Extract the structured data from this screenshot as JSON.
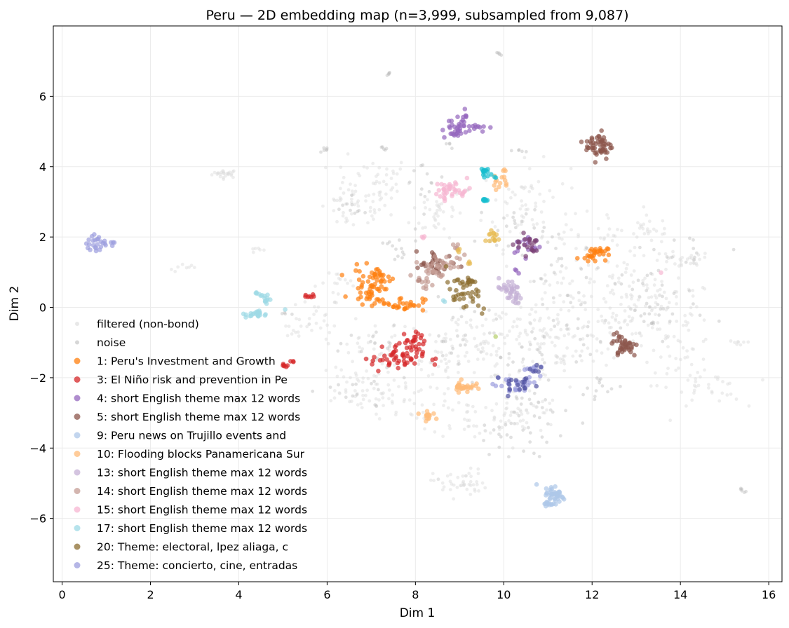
{
  "chart_data": {
    "type": "scatter",
    "title": "Peru — 2D embedding map (n=3,999, subsampled from 9,087)",
    "xlabel": "Dim 1",
    "ylabel": "Dim 2",
    "xlim": [
      -0.2,
      16.3
    ],
    "ylim": [
      -7.8,
      8.0
    ],
    "xticks": [
      0,
      2,
      4,
      6,
      8,
      10,
      12,
      14,
      16
    ],
    "yticks": [
      -6,
      -4,
      -2,
      0,
      2,
      4,
      6
    ],
    "xtick_labels": [
      "0",
      "2",
      "4",
      "6",
      "8",
      "10",
      "12",
      "14",
      "16"
    ],
    "ytick_labels": [
      "−6",
      "−4",
      "−2",
      "0",
      "2",
      "4",
      "6"
    ],
    "grid": true,
    "legend_position": "lower-left",
    "series": [
      {
        "name": "filtered (non-bond)",
        "color": "#d9d9d9",
        "background": true,
        "clusters": [
          [
            3.7,
            3.8,
            0.15,
            0.06,
            25
          ],
          [
            2.8,
            1.1,
            0.2,
            0.06,
            8
          ],
          [
            5.8,
            -0.3,
            0.25,
            0.3,
            25
          ],
          [
            6.6,
            2.8,
            0.4,
            0.3,
            40
          ],
          [
            7.0,
            3.6,
            0.45,
            0.35,
            45
          ],
          [
            8.5,
            2.7,
            0.3,
            0.35,
            35
          ],
          [
            10.5,
            2.9,
            0.5,
            0.6,
            60
          ],
          [
            11.8,
            1.0,
            0.6,
            0.7,
            60
          ],
          [
            12.8,
            0.3,
            0.6,
            0.6,
            60
          ],
          [
            13.3,
            2.2,
            0.3,
            0.2,
            25
          ],
          [
            14.0,
            1.3,
            0.35,
            0.15,
            30
          ],
          [
            13.8,
            0.1,
            0.5,
            0.3,
            30
          ],
          [
            12.9,
            -0.5,
            0.5,
            0.4,
            45
          ],
          [
            14.0,
            -1.2,
            0.4,
            0.5,
            40
          ],
          [
            14.6,
            -2.3,
            0.4,
            0.3,
            30
          ],
          [
            15.3,
            -1.0,
            0.1,
            0.03,
            8
          ],
          [
            11.0,
            -1.0,
            0.7,
            0.7,
            90
          ],
          [
            10.3,
            -3.0,
            0.5,
            0.35,
            50
          ],
          [
            9.2,
            -3.1,
            0.4,
            0.3,
            30
          ],
          [
            6.6,
            -2.4,
            0.5,
            0.4,
            45
          ],
          [
            7.6,
            -2.6,
            0.4,
            0.3,
            30
          ],
          [
            9.0,
            -5.0,
            0.3,
            0.2,
            45
          ],
          [
            9.7,
            -1.0,
            0.7,
            0.6,
            80
          ],
          [
            7.0,
            -1.2,
            0.5,
            0.4,
            40
          ],
          [
            8.6,
            -1.5,
            0.4,
            0.4,
            35
          ],
          [
            4.4,
            1.6,
            0.1,
            0.08,
            6
          ],
          [
            5.1,
            -0.7,
            0.15,
            0.1,
            8
          ],
          [
            12.4,
            2.0,
            0.15,
            0.15,
            12
          ],
          [
            6.4,
            0.7,
            0.3,
            0.2,
            15
          ]
        ]
      },
      {
        "name": "noise",
        "color": "#bdbdbd",
        "background": true,
        "clusters": [
          [
            7.4,
            6.65,
            0.03,
            0.02,
            5
          ],
          [
            9.9,
            7.2,
            0.04,
            0.02,
            5
          ],
          [
            7.3,
            4.5,
            0.05,
            0.04,
            5
          ],
          [
            6.0,
            4.5,
            0.05,
            0.05,
            6
          ],
          [
            10.4,
            4.45,
            0.06,
            0.03,
            5
          ],
          [
            8.8,
            4.6,
            0.05,
            0.04,
            4
          ],
          [
            10.2,
            2.4,
            0.4,
            0.3,
            20
          ],
          [
            11.3,
            0.9,
            0.5,
            0.5,
            25
          ],
          [
            13.2,
            0.5,
            0.5,
            0.5,
            20
          ],
          [
            13.5,
            -0.3,
            0.5,
            0.3,
            20
          ],
          [
            11.0,
            -1.2,
            0.6,
            0.6,
            35
          ],
          [
            10.7,
            -3.0,
            0.4,
            0.4,
            20
          ],
          [
            9.9,
            -3.5,
            0.3,
            0.2,
            12
          ],
          [
            15.4,
            -5.2,
            0.05,
            0.05,
            6
          ],
          [
            9.1,
            -0.9,
            0.5,
            0.5,
            25
          ],
          [
            7.3,
            -1.0,
            0.4,
            0.4,
            15
          ],
          [
            6.7,
            -2.4,
            0.4,
            0.3,
            15
          ],
          [
            7.5,
            1.5,
            0.3,
            0.4,
            15
          ],
          [
            8.3,
            3.5,
            0.3,
            0.4,
            15
          ],
          [
            6.5,
            2.8,
            0.2,
            0.15,
            10
          ],
          [
            12.2,
            -2.4,
            0.3,
            0.3,
            12
          ],
          [
            14.3,
            1.7,
            0.4,
            0.3,
            12
          ],
          [
            5.0,
            -0.2,
            0.1,
            0.1,
            4
          ],
          [
            10.4,
            -4.0,
            0.3,
            0.2,
            10
          ]
        ]
      },
      {
        "name": "1: Peru's Investment and Growth",
        "color": "#ff7f0e",
        "clusters": [
          [
            7.0,
            0.6,
            0.22,
            0.25,
            55
          ],
          [
            7.7,
            0.1,
            0.25,
            0.1,
            30
          ],
          [
            7.2,
            0.9,
            0.15,
            0.12,
            12
          ],
          [
            12.05,
            1.55,
            0.15,
            0.1,
            25
          ],
          [
            11.95,
            1.4,
            0.05,
            0.05,
            5
          ]
        ]
      },
      {
        "name": "3: El Niño risk and prevention in Pe",
        "color": "#d62728",
        "clusters": [
          [
            7.6,
            -1.4,
            0.3,
            0.22,
            60
          ],
          [
            8.0,
            -1.0,
            0.1,
            0.15,
            15
          ],
          [
            5.6,
            0.35,
            0.08,
            0.05,
            7
          ],
          [
            5.0,
            -1.65,
            0.05,
            0.03,
            6
          ],
          [
            5.2,
            -1.55,
            0.05,
            0.04,
            3
          ]
        ]
      },
      {
        "name": "4: short English theme max 12 words",
        "color": "#9467bd",
        "clusters": [
          [
            8.9,
            5.0,
            0.15,
            0.12,
            20
          ],
          [
            9.25,
            5.15,
            0.2,
            0.08,
            20
          ],
          [
            9.05,
            5.45,
            0.07,
            0.1,
            8
          ],
          [
            10.55,
            1.75,
            0.15,
            0.15,
            20
          ],
          [
            10.3,
            1.05,
            0.05,
            0.05,
            3
          ]
        ]
      },
      {
        "name": "5: short English theme max 12 words",
        "color": "#8c564b",
        "clusters": [
          [
            12.15,
            4.6,
            0.15,
            0.2,
            55
          ],
          [
            12.75,
            -1.1,
            0.15,
            0.15,
            35
          ],
          [
            12.55,
            -0.75,
            0.05,
            0.08,
            5
          ],
          [
            8.5,
            1.2,
            0.25,
            0.2,
            35
          ]
        ]
      },
      {
        "name": "9: Peru news on Trujillo events and",
        "color": "#aec7e8",
        "clusters": [
          [
            11.15,
            -5.35,
            0.12,
            0.15,
            45
          ],
          [
            11.0,
            -5.6,
            0.05,
            0.05,
            6
          ]
        ]
      },
      {
        "name": "10: Flooding blocks Panamericana Sur",
        "color": "#ffbb78",
        "clusters": [
          [
            9.1,
            -2.25,
            0.12,
            0.08,
            30
          ],
          [
            8.3,
            -3.05,
            0.1,
            0.07,
            15
          ],
          [
            9.9,
            3.55,
            0.1,
            0.1,
            12
          ],
          [
            10.0,
            3.9,
            0.03,
            0.03,
            3
          ]
        ]
      },
      {
        "name": "13: short English theme max 12 words",
        "color": "#c5b0d5",
        "clusters": [
          [
            10.1,
            0.5,
            0.15,
            0.15,
            30
          ],
          [
            10.3,
            0.25,
            0.1,
            0.08,
            8
          ]
        ]
      },
      {
        "name": "14: short English theme max 12 words",
        "color": "#c49c94",
        "clusters": [
          [
            8.45,
            1.15,
            0.2,
            0.18,
            40
          ],
          [
            8.9,
            1.6,
            0.1,
            0.1,
            8
          ],
          [
            8.3,
            0.6,
            0.1,
            0.1,
            6
          ]
        ]
      },
      {
        "name": "15: short English theme max 12 words",
        "color": "#f7b6d2",
        "clusters": [
          [
            8.85,
            3.35,
            0.2,
            0.12,
            35
          ],
          [
            8.6,
            3.1,
            0.05,
            0.05,
            4
          ],
          [
            13.55,
            1.0,
            0.02,
            0.02,
            1
          ],
          [
            8.2,
            2.0,
            0.05,
            0.05,
            3
          ]
        ]
      },
      {
        "name": "17: short English theme max 12 words",
        "color": "#9edae5",
        "clusters": [
          [
            4.4,
            -0.2,
            0.12,
            0.05,
            22
          ],
          [
            4.6,
            0.25,
            0.06,
            0.08,
            12
          ],
          [
            4.4,
            0.4,
            0.03,
            0.04,
            4
          ],
          [
            5.0,
            -0.05,
            0.02,
            0.02,
            1
          ],
          [
            8.65,
            0.15,
            0.03,
            0.03,
            2
          ]
        ]
      },
      {
        "name": "20: Theme: electoral, lpez aliaga, c",
        "color": "#8c6d31",
        "clusters": [
          [
            9.05,
            0.45,
            0.18,
            0.2,
            35
          ],
          [
            9.2,
            0.75,
            0.08,
            0.05,
            8
          ],
          [
            9.5,
            -0.05,
            0.05,
            0.05,
            3
          ]
        ]
      },
      {
        "name": "25: Theme: concierto, cine, entradas",
        "color": "#9c9ede",
        "clusters": [
          [
            0.8,
            1.8,
            0.12,
            0.12,
            25
          ],
          [
            1.15,
            1.85,
            0.04,
            0.04,
            3
          ],
          [
            10.25,
            -2.2,
            0.25,
            0.15,
            25
          ],
          [
            10.6,
            -1.75,
            0.1,
            0.08,
            10
          ]
        ]
      },
      {
        "name": "",
        "color": "#17becf",
        "in_legend": false,
        "clusters": [
          [
            9.55,
            3.85,
            0.05,
            0.07,
            14
          ],
          [
            9.55,
            3.05,
            0.04,
            0.02,
            8
          ],
          [
            9.8,
            3.7,
            0.02,
            0.02,
            2
          ]
        ]
      },
      {
        "name": "",
        "color": "#e7ba52",
        "in_legend": false,
        "clusters": [
          [
            9.75,
            2.0,
            0.08,
            0.12,
            14
          ],
          [
            9.0,
            1.6,
            0.05,
            0.05,
            3
          ],
          [
            9.2,
            1.3,
            0.05,
            0.05,
            3
          ]
        ]
      },
      {
        "name": "",
        "color": "#7b4173",
        "in_legend": false,
        "clusters": [
          [
            10.55,
            1.8,
            0.15,
            0.15,
            20
          ]
        ]
      },
      {
        "name": "",
        "color": "#5254a3",
        "in_legend": false,
        "clusters": [
          [
            10.3,
            -2.2,
            0.25,
            0.15,
            18
          ],
          [
            10.7,
            -1.8,
            0.1,
            0.08,
            6
          ]
        ]
      },
      {
        "name": "",
        "color": "#b5cf6b",
        "in_legend": false,
        "clusters": [
          [
            9.8,
            -0.85,
            0.02,
            0.02,
            1
          ]
        ]
      }
    ]
  }
}
